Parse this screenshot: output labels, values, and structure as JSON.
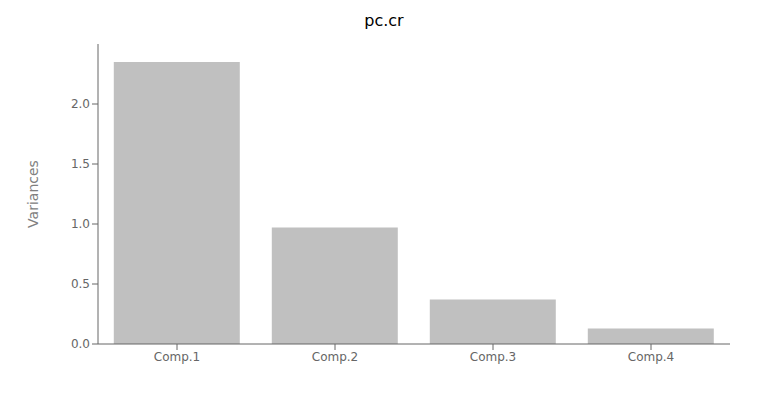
{
  "chart_data": {
    "type": "bar",
    "title": "pc.cr",
    "categories": [
      "Comp.1",
      "Comp.2",
      "Comp.3",
      "Comp.4"
    ],
    "values": [
      2.35,
      0.97,
      0.37,
      0.13
    ],
    "color": "#c0c0c0",
    "ylabel": "Variances",
    "ylim": [
      0,
      2.5
    ],
    "yticks": [
      {
        "value": 0,
        "label": "0.0"
      },
      0.5,
      {
        "value": 1,
        "label": "1.0"
      },
      1.5,
      {
        "value": 2,
        "label": "2.0"
      }
    ],
    "grid": false
  }
}
